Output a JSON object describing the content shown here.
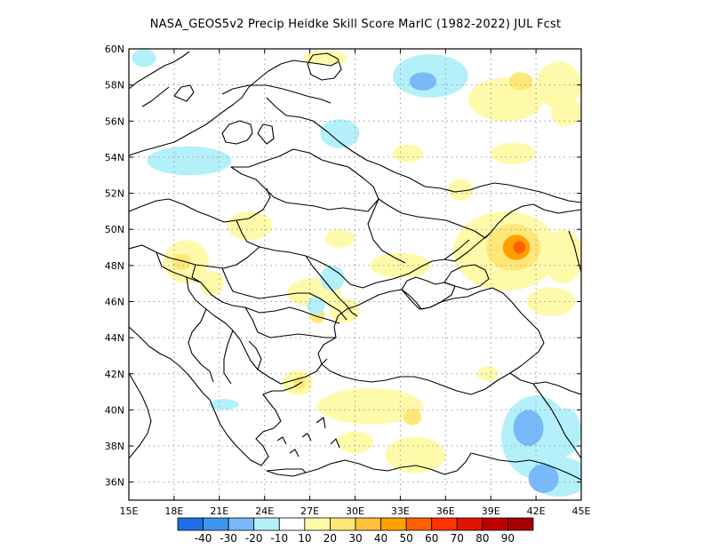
{
  "title": "NASA_GEOS5v2 Precip Heidke Skill Score MarIC (1982-2022) JUL Fcst",
  "chart_data": {
    "type": "heatmap",
    "lon_range": [
      15,
      45
    ],
    "lat_range": [
      35,
      60
    ],
    "x_ticks": [
      "15E",
      "18E",
      "21E",
      "24E",
      "27E",
      "30E",
      "33E",
      "36E",
      "39E",
      "42E",
      "45E"
    ],
    "y_ticks": [
      "36N",
      "38N",
      "40N",
      "42N",
      "44N",
      "46N",
      "48N",
      "50N",
      "52N",
      "54N",
      "56N",
      "58N",
      "60N"
    ],
    "colorbar": {
      "labels": [
        "-40",
        "-30",
        "-20",
        "-10",
        "10",
        "20",
        "30",
        "40",
        "50",
        "60",
        "70",
        "80",
        "90"
      ],
      "colors": [
        "#1e6ee6",
        "#3c96f0",
        "#78b9fa",
        "#b4f0fa",
        "#ffffff",
        "#fffaaa",
        "#ffe878",
        "#ffc03c",
        "#ffa000",
        "#ff6000",
        "#ff3200",
        "#e11400",
        "#c00000",
        "#a50000"
      ]
    },
    "grid": true,
    "anomaly_regions": [
      {
        "value": 15,
        "lon": 28,
        "lat": 59.5,
        "rx": 1.5,
        "ry": 0.4
      },
      {
        "value": 15,
        "lon": 40,
        "lat": 57.2,
        "rx": 2.5,
        "ry": 1.2
      },
      {
        "value": 15,
        "lon": 43.5,
        "lat": 58,
        "rx": 1.5,
        "ry": 1.3
      },
      {
        "value": 25,
        "lon": 41,
        "lat": 58.2,
        "rx": 0.8,
        "ry": 0.5
      },
      {
        "value": 15,
        "lon": 44,
        "lat": 56.5,
        "rx": 1.0,
        "ry": 0.8
      },
      {
        "value": 15,
        "lon": 40.5,
        "lat": 54.2,
        "rx": 1.5,
        "ry": 0.6
      },
      {
        "value": 15,
        "lon": 33.5,
        "lat": 54.2,
        "rx": 1.0,
        "ry": 0.5
      },
      {
        "value": 15,
        "lon": 37,
        "lat": 52.2,
        "rx": 0.8,
        "ry": 0.6
      },
      {
        "value": 15,
        "lon": 29,
        "lat": 49.5,
        "rx": 1.0,
        "ry": 0.5
      },
      {
        "value": 15,
        "lon": 40,
        "lat": 48.8,
        "rx": 3.5,
        "ry": 2.2
      },
      {
        "value": 25,
        "lon": 40.5,
        "lat": 49.0,
        "rx": 1.8,
        "ry": 1.3
      },
      {
        "value": 40,
        "lon": 40.7,
        "lat": 49.0,
        "rx": 0.9,
        "ry": 0.7
      },
      {
        "value": 55,
        "lon": 40.9,
        "lat": 49.0,
        "rx": 0.4,
        "ry": 0.35
      },
      {
        "value": 15,
        "lon": 43.8,
        "lat": 48.5,
        "rx": 1.3,
        "ry": 1.5
      },
      {
        "value": 15,
        "lon": 33,
        "lat": 48,
        "rx": 2.0,
        "ry": 0.7
      },
      {
        "value": 15,
        "lon": 43,
        "lat": 46,
        "rx": 1.6,
        "ry": 0.8
      },
      {
        "value": 15,
        "lon": 23,
        "lat": 50.2,
        "rx": 1.5,
        "ry": 0.8
      },
      {
        "value": 15,
        "lon": 18.8,
        "lat": 48.2,
        "rx": 1.5,
        "ry": 1.2
      },
      {
        "value": 25,
        "lon": 18.5,
        "lat": 48.2,
        "rx": 0.6,
        "ry": 0.45
      },
      {
        "value": 15,
        "lon": 20.5,
        "lat": 47,
        "rx": 0.8,
        "ry": 0.7
      },
      {
        "value": 15,
        "lon": 27.3,
        "lat": 46.5,
        "rx": 1.8,
        "ry": 0.8
      },
      {
        "value": 15,
        "lon": 29.3,
        "lat": 45.5,
        "rx": 1.0,
        "ry": 0.7
      },
      {
        "value": 25,
        "lon": 27.5,
        "lat": 45.2,
        "rx": 0.5,
        "ry": 0.4
      },
      {
        "value": 15,
        "lon": 31,
        "lat": 40.2,
        "rx": 3.5,
        "ry": 1.0
      },
      {
        "value": 25,
        "lon": 33.8,
        "lat": 39.6,
        "rx": 0.6,
        "ry": 0.45
      },
      {
        "value": 15,
        "lon": 30,
        "lat": 38.2,
        "rx": 1.2,
        "ry": 0.6
      },
      {
        "value": 15,
        "lon": 34,
        "lat": 37.5,
        "rx": 2.0,
        "ry": 1.0
      },
      {
        "value": 15,
        "lon": 26.2,
        "lat": 41.5,
        "rx": 1.0,
        "ry": 0.7
      },
      {
        "value": 25,
        "lon": 26.3,
        "lat": 41.5,
        "rx": 0.4,
        "ry": 0.35
      },
      {
        "value": 15,
        "lon": 38.8,
        "lat": 42.0,
        "rx": 0.7,
        "ry": 0.4
      },
      {
        "value": -15,
        "lon": 35,
        "lat": 58.5,
        "rx": 2.5,
        "ry": 1.2
      },
      {
        "value": -25,
        "lon": 34.5,
        "lat": 58.2,
        "rx": 0.9,
        "ry": 0.5
      },
      {
        "value": -15,
        "lon": 29,
        "lat": 55.3,
        "rx": 1.3,
        "ry": 0.8
      },
      {
        "value": -15,
        "lon": 19,
        "lat": 53.8,
        "rx": 2.8,
        "ry": 0.8
      },
      {
        "value": -15,
        "lon": 28.5,
        "lat": 47.3,
        "rx": 0.8,
        "ry": 0.7
      },
      {
        "value": -15,
        "lon": 27.4,
        "lat": 45.8,
        "rx": 0.6,
        "ry": 0.5
      },
      {
        "value": -15,
        "lon": 42,
        "lat": 38.5,
        "rx": 2.3,
        "ry": 2.3
      },
      {
        "value": -25,
        "lon": 41.5,
        "lat": 39.0,
        "rx": 1.0,
        "ry": 1.0
      },
      {
        "value": -30,
        "lon": 41.6,
        "lat": 39.0,
        "rx": 0.35,
        "ry": 0.3
      },
      {
        "value": -15,
        "lon": 44,
        "lat": 38.8,
        "rx": 1.0,
        "ry": 1.3
      },
      {
        "value": -15,
        "lon": 43.5,
        "lat": 36.3,
        "rx": 2.0,
        "ry": 1.1
      },
      {
        "value": -25,
        "lon": 42.5,
        "lat": 36.2,
        "rx": 1.0,
        "ry": 0.8
      },
      {
        "value": -15,
        "lon": 21.3,
        "lat": 40.3,
        "rx": 1.0,
        "ry": 0.3
      },
      {
        "value": -15,
        "lon": 16,
        "lat": 59.5,
        "rx": 0.8,
        "ry": 0.5
      }
    ]
  }
}
